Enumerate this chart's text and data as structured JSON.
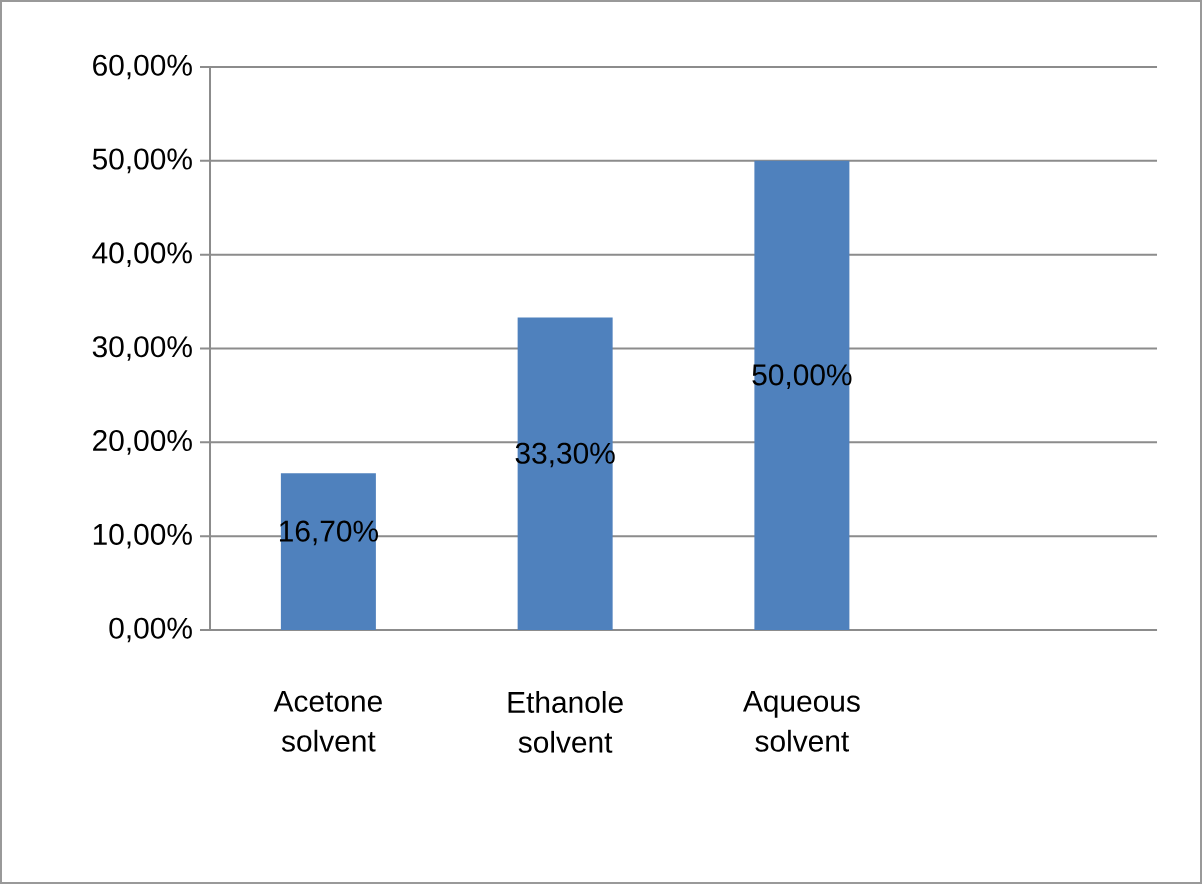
{
  "chart_data": {
    "type": "bar",
    "categories": [
      "Acetone solvent",
      "Ethanole solvent",
      "Aqueous solvent",
      null
    ],
    "values": [
      16.7,
      33.3,
      50.0,
      null
    ],
    "value_labels": [
      "16,70%",
      "33,30%",
      "50,00%",
      null
    ],
    "color": "#4f81bd",
    "ylim": [
      0,
      60
    ],
    "yticks": [
      {
        "value": 0,
        "label": "0,00%"
      },
      {
        "value": 10,
        "label": "10,00%"
      },
      {
        "value": 20,
        "label": "20,00%"
      },
      {
        "value": 30,
        "label": "30,00%"
      },
      {
        "value": 40,
        "label": "40,00%"
      },
      {
        "value": 50,
        "label": "50,00%"
      },
      {
        "value": 60,
        "label": "60,00%"
      }
    ],
    "grid": "y"
  }
}
